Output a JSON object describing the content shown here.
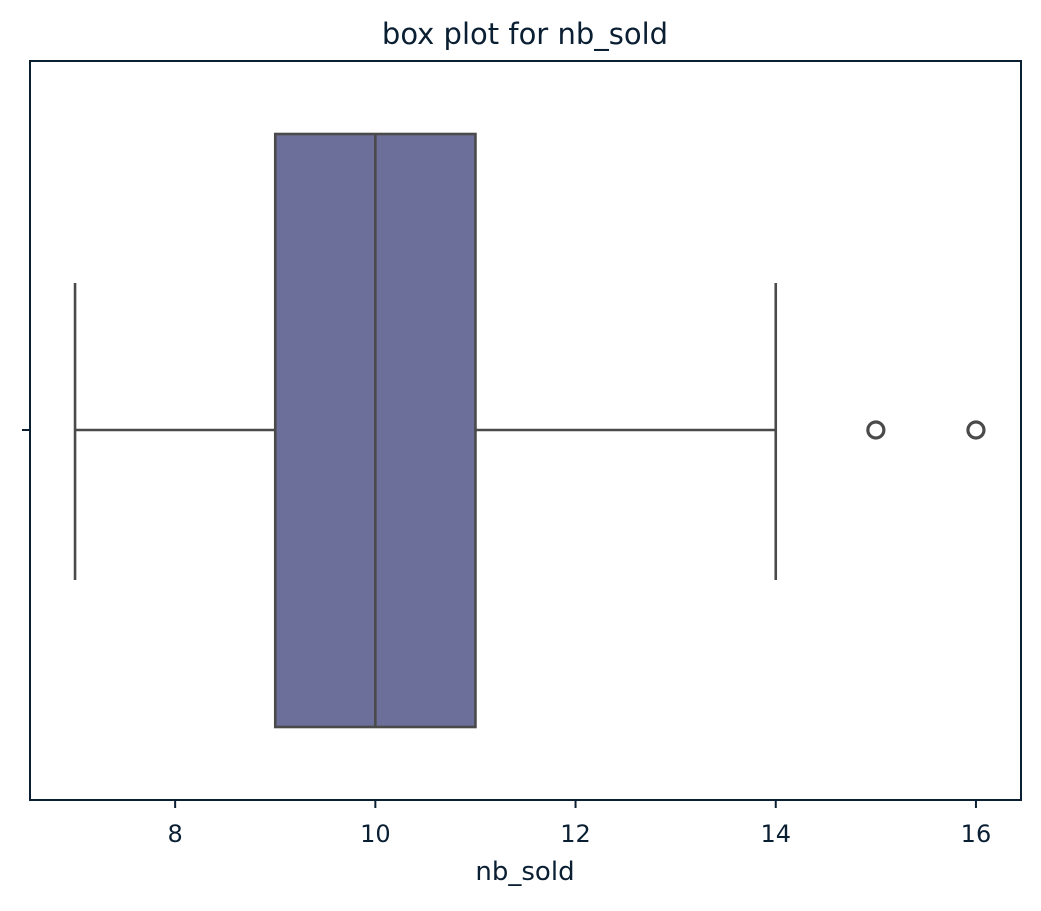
{
  "chart_data": {
    "type": "box",
    "title": "box plot for nb_sold",
    "xlabel": "nb_sold",
    "ylabel": "",
    "orientation": "horizontal",
    "xlim": [
      6.55,
      16.45
    ],
    "xticks": [
      8,
      10,
      12,
      14,
      16
    ],
    "grid": false,
    "box": {
      "whisker_low": 7,
      "q1": 9,
      "median": 10,
      "q3": 11,
      "whisker_high": 14,
      "outliers": [
        15,
        16
      ]
    },
    "colors": {
      "box_fill": "#6c6f9a",
      "lines": "#4a4a4a",
      "axes": "#0b1f33",
      "text": "#0b1f33"
    }
  }
}
